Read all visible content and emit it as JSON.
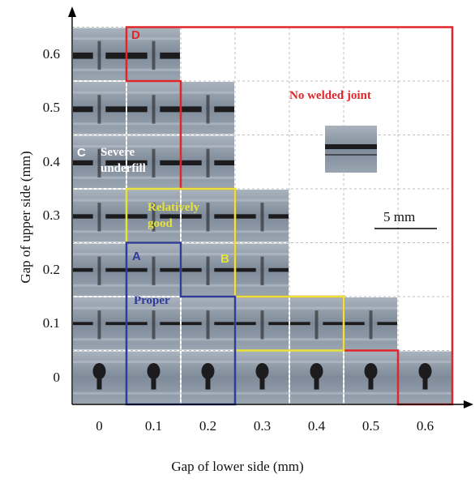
{
  "x_axis": {
    "title": "Gap of lower side (mm)",
    "ticks": [
      "0",
      "0.1",
      "0.2",
      "0.3",
      "0.4",
      "0.5",
      "0.6"
    ]
  },
  "y_axis": {
    "title": "Gap of upper side (mm)",
    "ticks": [
      "0.6",
      "0.5",
      "0.4",
      "0.3",
      "0.2",
      "0.1",
      "0"
    ]
  },
  "regions": {
    "no_weld": {
      "label": "No welded joint",
      "letter": "D",
      "color": "#e0262a"
    },
    "underfill": {
      "label": "Severe underfill",
      "letter": "C",
      "color": "#ffffff"
    },
    "good": {
      "label": "Relatively good",
      "letter": "B",
      "color": "#e8e23a"
    },
    "proper": {
      "label": "Proper",
      "letter": "A",
      "color": "#2d3c9e"
    }
  },
  "scale_bar": {
    "label": "5 mm"
  },
  "samples": {
    "description_present": true,
    "occupied_cells": [
      [
        0,
        0
      ],
      [
        1,
        0
      ],
      [
        2,
        0
      ],
      [
        3,
        0
      ],
      [
        4,
        0
      ],
      [
        5,
        0
      ],
      [
        6,
        0
      ],
      [
        0,
        1
      ],
      [
        1,
        1
      ],
      [
        2,
        1
      ],
      [
        3,
        1
      ],
      [
        4,
        1
      ],
      [
        5,
        1
      ],
      [
        0,
        2
      ],
      [
        1,
        2
      ],
      [
        2,
        2
      ],
      [
        3,
        2
      ],
      [
        0,
        3
      ],
      [
        1,
        3
      ],
      [
        2,
        3
      ],
      [
        3,
        3
      ],
      [
        0,
        4
      ],
      [
        1,
        4
      ],
      [
        2,
        4
      ],
      [
        0,
        5
      ],
      [
        1,
        5
      ],
      [
        2,
        5
      ],
      [
        0,
        6
      ],
      [
        1,
        6
      ]
    ],
    "colors": {
      "metal": "#8c98a6",
      "metal_light": "#b7c0ca",
      "void": "#1c1c1e"
    }
  }
}
